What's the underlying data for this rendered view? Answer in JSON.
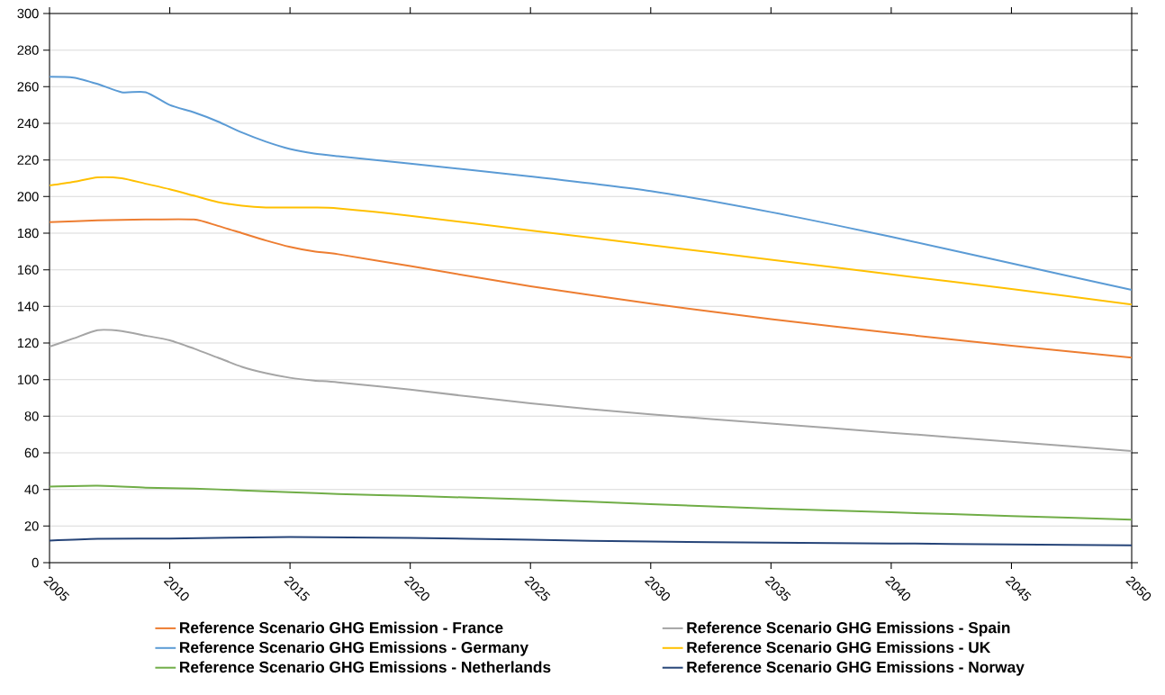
{
  "chart_data": {
    "type": "line",
    "xlim": [
      2005,
      2050
    ],
    "xticks": [
      2005,
      2010,
      2015,
      2020,
      2025,
      2030,
      2035,
      2040,
      2045,
      2050
    ],
    "ylim": [
      0,
      300
    ],
    "yticks": [
      0,
      20,
      40,
      60,
      80,
      100,
      120,
      140,
      160,
      180,
      200,
      220,
      240,
      260,
      280,
      300
    ],
    "grid": "y",
    "legend": "bottom",
    "series": [
      {
        "name": "Reference Scenario GHG  Emission - France",
        "color": "#ed7d31",
        "x": [
          2005,
          2007,
          2009,
          2011,
          2012,
          2013,
          2014,
          2015,
          2016,
          2017,
          2020,
          2025,
          2030,
          2035,
          2040,
          2045,
          2050
        ],
        "values": [
          186,
          187,
          187.5,
          187.5,
          184,
          180,
          176,
          172.5,
          170,
          168.5,
          162,
          151,
          141.5,
          133,
          125.5,
          118.5,
          112
        ]
      },
      {
        "name": "Reference Scenario GHG Emissions - Spain",
        "color": "#a5a5a5",
        "x": [
          2005,
          2006,
          2007,
          2008,
          2009,
          2010,
          2011,
          2012,
          2013,
          2014,
          2015,
          2016,
          2017,
          2020,
          2025,
          2030,
          2035,
          2040,
          2045,
          2050
        ],
        "values": [
          118,
          122.5,
          127,
          126.5,
          124,
          121.5,
          117,
          112,
          107,
          103.5,
          101,
          99.5,
          98.5,
          94.5,
          87,
          81,
          76,
          71,
          66,
          61
        ]
      },
      {
        "name": "Reference Scenario GHG Emissions - Germany",
        "color": "#5b9bd5",
        "x": [
          2005,
          2006,
          2007,
          2008,
          2009,
          2010,
          2011,
          2012,
          2013,
          2014,
          2015,
          2016,
          2017,
          2020,
          2025,
          2030,
          2035,
          2040,
          2045,
          2050
        ],
        "values": [
          265.5,
          265,
          261.5,
          257,
          257,
          250,
          246,
          241,
          235,
          230,
          226,
          223.5,
          222,
          218,
          211,
          203,
          191.5,
          178,
          163.5,
          149
        ]
      },
      {
        "name": "Reference Scenario GHG Emissions - UK",
        "color": "#ffc000",
        "x": [
          2005,
          2006,
          2007,
          2008,
          2009,
          2010,
          2011,
          2012,
          2013,
          2014,
          2015,
          2016,
          2017,
          2020,
          2025,
          2030,
          2035,
          2040,
          2045,
          2050
        ],
        "values": [
          206,
          208,
          210.5,
          210,
          207,
          204,
          200.5,
          197,
          195,
          194,
          194,
          194,
          193.5,
          189.5,
          181.5,
          173.5,
          165.5,
          157.5,
          149.5,
          141
        ]
      },
      {
        "name": "Reference Scenario GHG Emissions - Netherlands",
        "color": "#70ad47",
        "x": [
          2005,
          2007,
          2009,
          2011,
          2013,
          2015,
          2017,
          2020,
          2025,
          2030,
          2035,
          2040,
          2045,
          2050
        ],
        "values": [
          41.5,
          42,
          41,
          40.5,
          39.5,
          38.5,
          37.5,
          36.5,
          34.5,
          32,
          29.5,
          27.5,
          25.5,
          23.5
        ]
      },
      {
        "name": "Reference Scenario GHG Emissions - Norway",
        "color": "#264478",
        "x": [
          2005,
          2007,
          2010,
          2015,
          2020,
          2025,
          2030,
          2035,
          2040,
          2045,
          2050
        ],
        "values": [
          12,
          13,
          13.2,
          14,
          13.5,
          12.5,
          11.5,
          11,
          10.5,
          10,
          9.5
        ]
      }
    ]
  }
}
